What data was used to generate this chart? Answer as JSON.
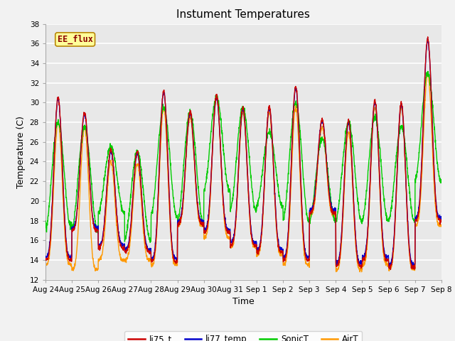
{
  "title": "Instument Temperatures",
  "xlabel": "Time",
  "ylabel": "Temperature (C)",
  "ylim": [
    12,
    38
  ],
  "annotation": "EE_flux",
  "background_color": "#f2f2f2",
  "plot_bg_color": "#e8e8e8",
  "legend_labels": [
    "li75_t",
    "li77_temp",
    "SonicT",
    "AirT"
  ],
  "legend_colors": [
    "#cc0000",
    "#0000cc",
    "#00cc00",
    "#ff9900"
  ],
  "x_tick_labels": [
    "Aug 24",
    "Aug 25",
    "Aug 26",
    "Aug 27",
    "Aug 28",
    "Aug 29",
    "Aug 30",
    "Aug 31",
    "Sep 1",
    "Sep 2",
    "Sep 3",
    "Sep 4",
    "Sep 5",
    "Sep 6",
    "Sep 7",
    "Sep 8"
  ],
  "num_days": 15,
  "title_fontsize": 11,
  "axis_fontsize": 9,
  "tick_fontsize": 7.5
}
